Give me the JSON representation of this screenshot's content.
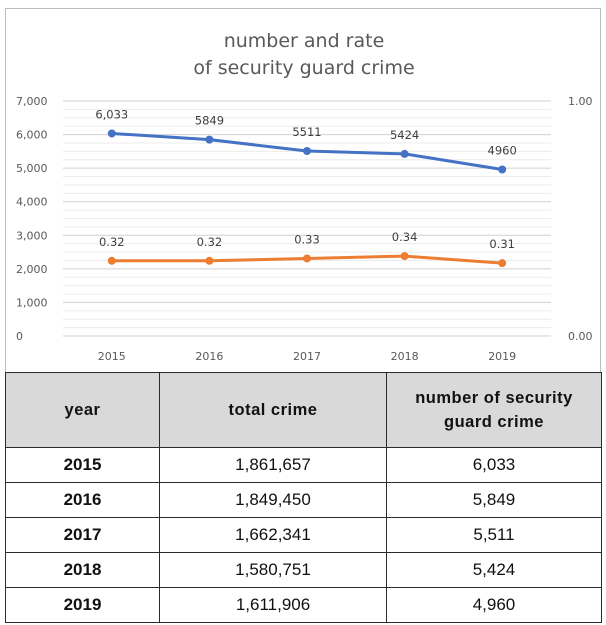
{
  "chart_data": {
    "type": "line",
    "title": "number and rate\nof security guard crime",
    "categories": [
      "2015",
      "2016",
      "2017",
      "2018",
      "2019"
    ],
    "series": [
      {
        "values": [
          6033,
          5849,
          5511,
          5424,
          4960
        ],
        "labels": [
          "6,033",
          "5849",
          "5511",
          "5424",
          "4960"
        ],
        "axis": "left",
        "color": "#4472c4"
      },
      {
        "values": [
          0.32,
          0.32,
          0.33,
          0.34,
          0.31
        ],
        "labels": [
          "0.32",
          "0.32",
          "0.33",
          "0.34",
          "0.31"
        ],
        "axis": "right",
        "color": "#ed7d31"
      }
    ],
    "y_left": {
      "range": [
        0,
        7000
      ],
      "ticks": [
        "0",
        "1,000",
        "2,000",
        "3,000",
        "4,000",
        "5,000",
        "6,000",
        "7,000"
      ]
    },
    "y_right": {
      "range": [
        0.0,
        1.0
      ],
      "ticks": [
        "0.00",
        "1.00"
      ]
    },
    "grid": true,
    "legend": "none"
  },
  "table": {
    "headers": [
      "year",
      "total crime",
      "number of security guard crime"
    ],
    "rows": [
      [
        "2015",
        "1,861,657",
        "6,033"
      ],
      [
        "2016",
        "1,849,450",
        "5,849"
      ],
      [
        "2017",
        "1,662,341",
        "5,511"
      ],
      [
        "2018",
        "1,580,751",
        "5,424"
      ],
      [
        "2019",
        "1,611,906",
        "4,960"
      ]
    ]
  }
}
